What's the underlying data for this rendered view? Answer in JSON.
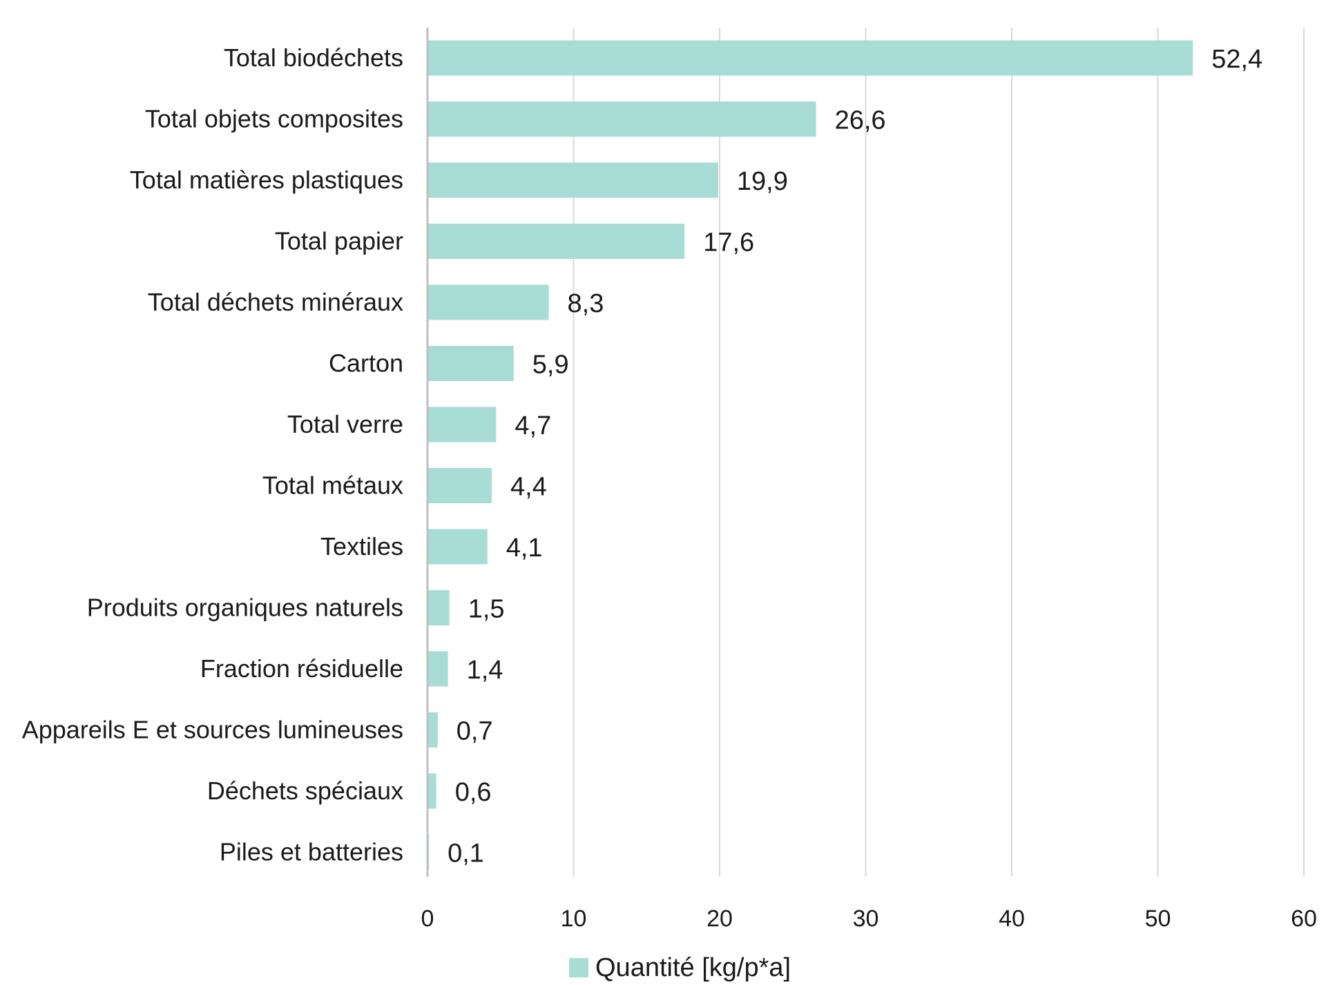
{
  "chart_data": {
    "type": "bar",
    "orientation": "horizontal",
    "categories": [
      "Total biodéchets",
      "Total objets composites",
      "Total matières plastiques",
      "Total papier",
      "Total déchets minéraux",
      "Carton",
      "Total verre",
      "Total métaux",
      "Textiles",
      "Produits organiques naturels",
      "Fraction résiduelle",
      "Appareils E et sources lumineuses",
      "Déchets spéciaux",
      "Piles et batteries"
    ],
    "series": [
      {
        "name": "Quantité [kg/p*a]",
        "values": [
          52.4,
          26.6,
          19.9,
          17.6,
          8.3,
          5.9,
          4.7,
          4.4,
          4.1,
          1.5,
          1.4,
          0.7,
          0.6,
          0.1
        ],
        "value_labels": [
          "52,4",
          "26,6",
          "19,9",
          "17,6",
          "8,3",
          "5,9",
          "4,7",
          "4,4",
          "4,1",
          "1,5",
          "1,4",
          "0,7",
          "0,6",
          "0,1"
        ],
        "color": "#a8ddd5"
      }
    ],
    "xlim": [
      0,
      60
    ],
    "xticks": [
      0,
      10,
      20,
      30,
      40,
      50,
      60
    ],
    "xtick_labels": [
      "0",
      "10",
      "20",
      "30",
      "40",
      "50",
      "60"
    ],
    "grid": "vertical",
    "grid_color": "#d9d9d9",
    "axis_color": "#bfbfbf",
    "legend_position": "bottom",
    "title": "",
    "xlabel": "",
    "ylabel": ""
  }
}
